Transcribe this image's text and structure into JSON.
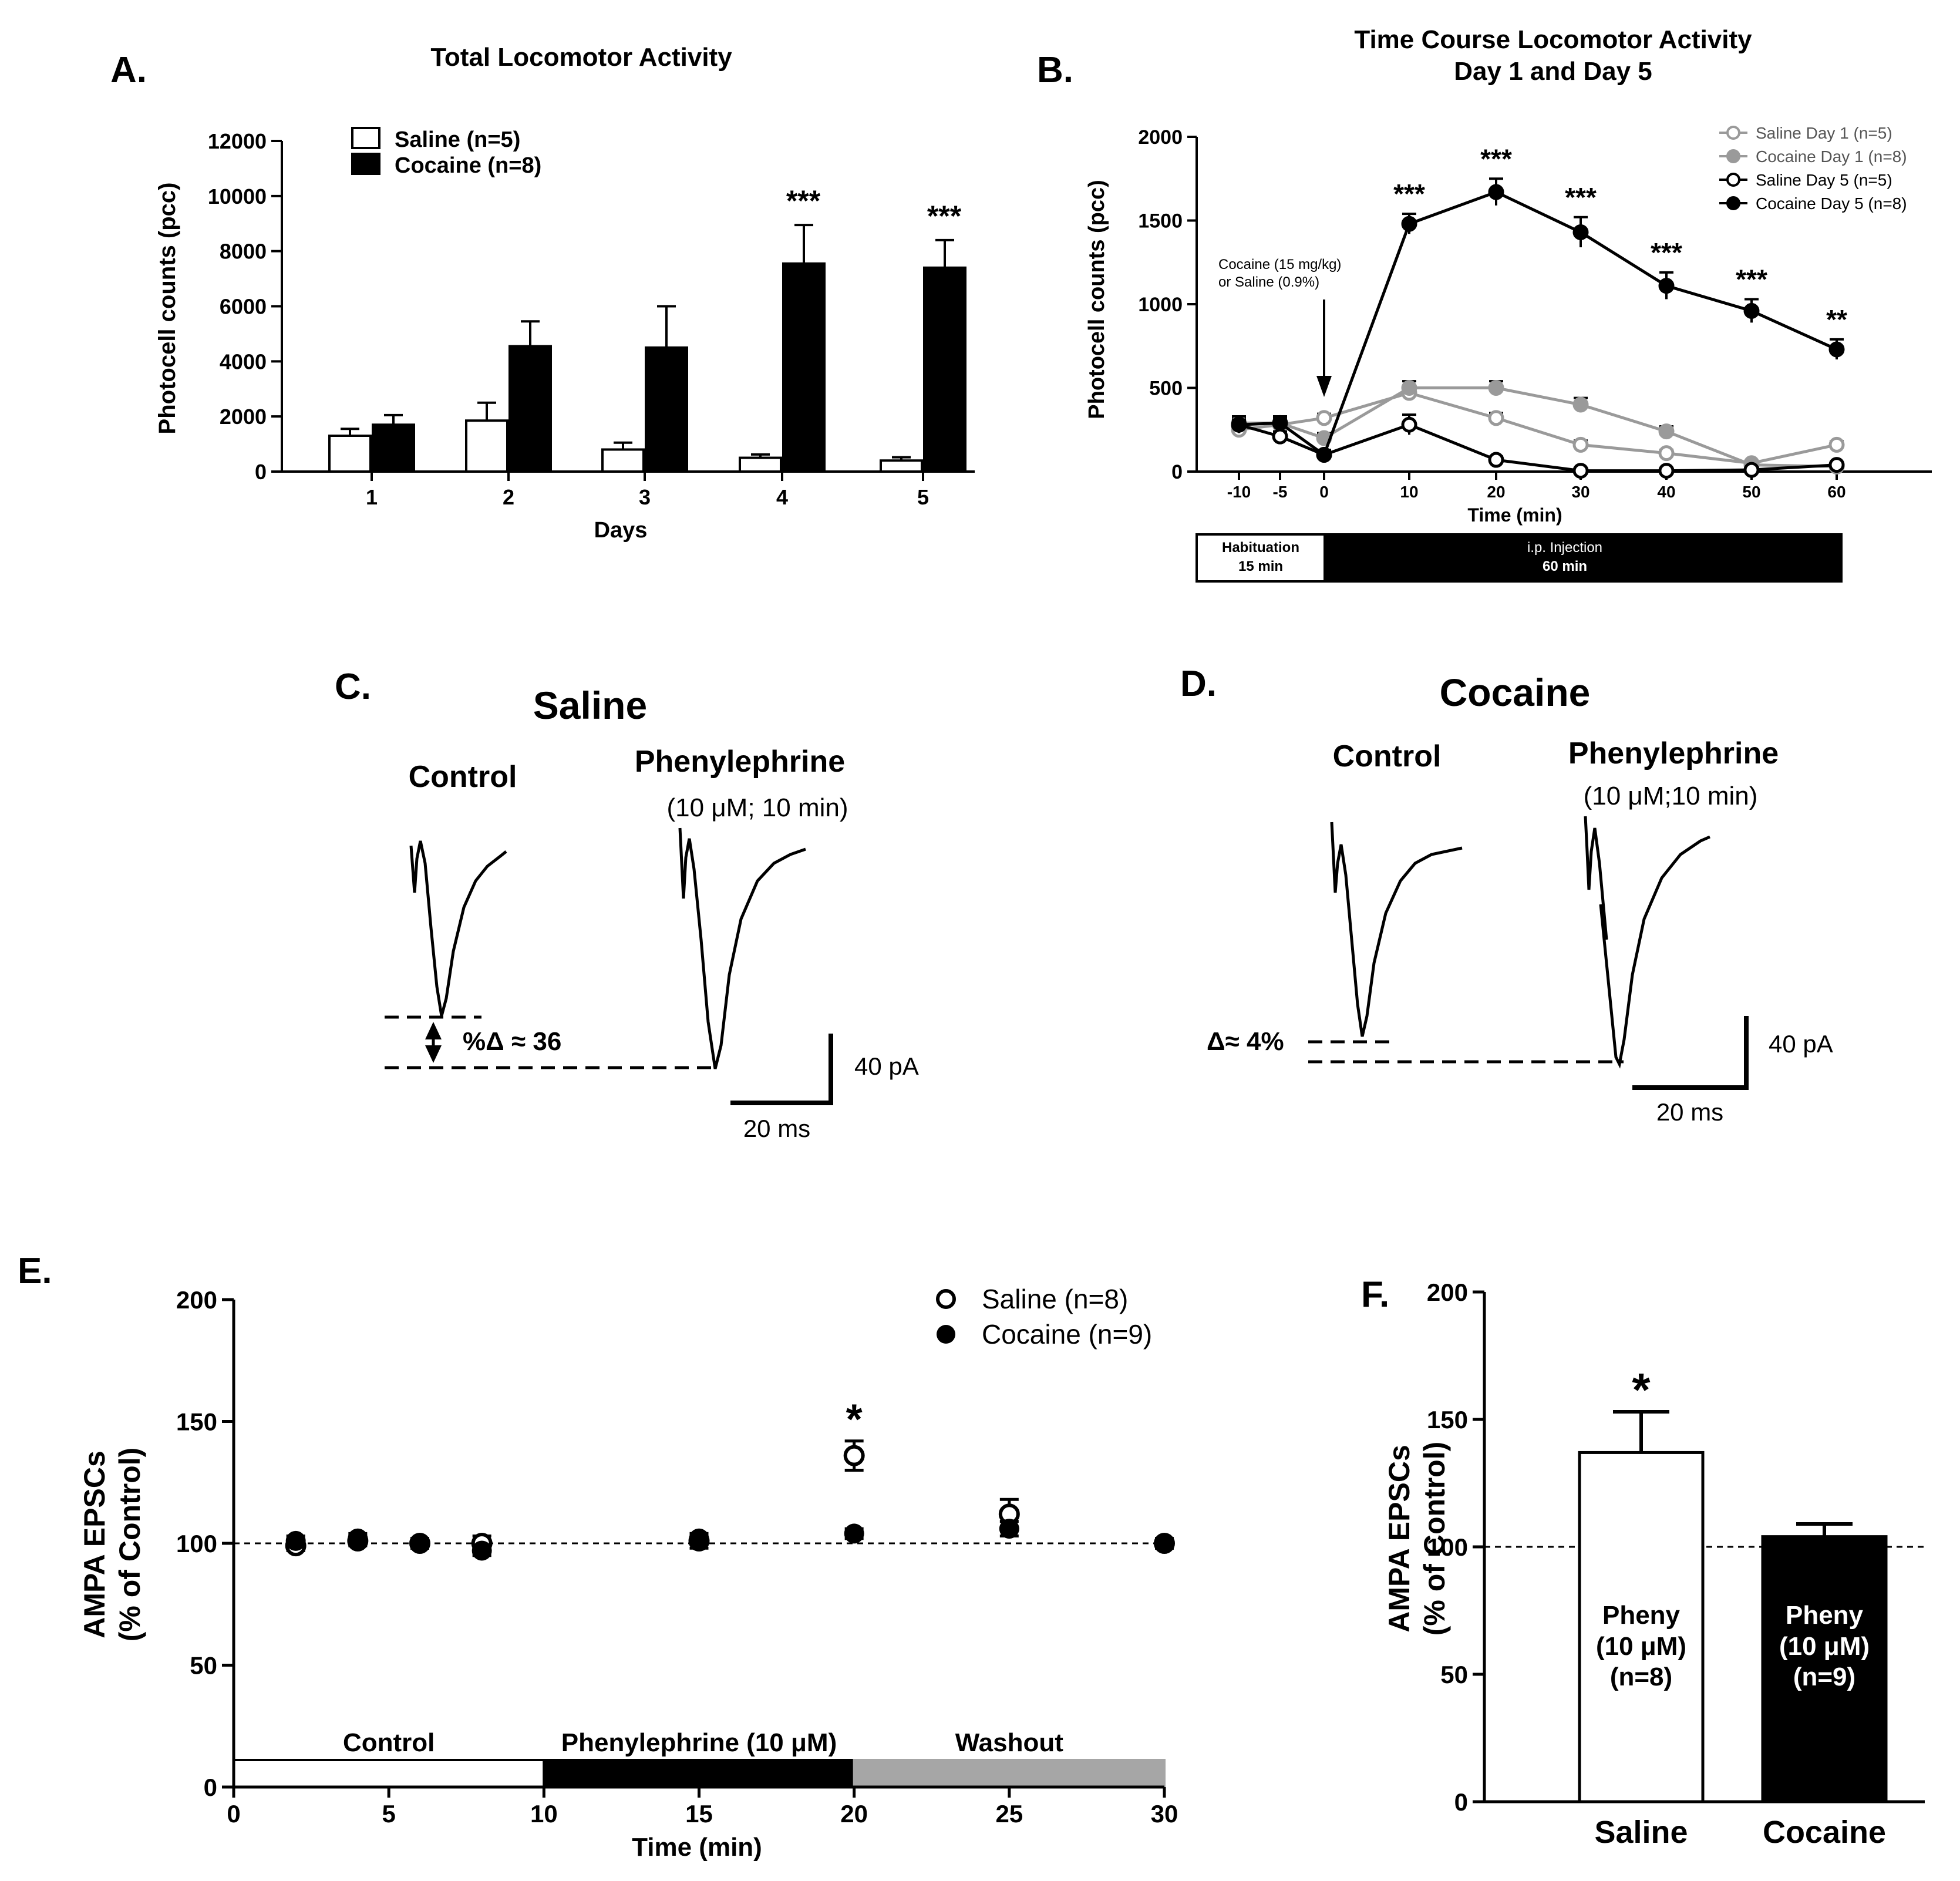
{
  "chart_data": [
    {
      "id": "A",
      "panel_label": "A.",
      "type": "bar",
      "title": "Total Locomotor Activity",
      "xlabel": "Days",
      "ylabel": "Photocell counts (pcc)",
      "ylim": [
        0,
        12000
      ],
      "yticks": [
        "0",
        "2000",
        "4000",
        "6000",
        "8000",
        "10000",
        "12000"
      ],
      "categories": [
        "1",
        "2",
        "3",
        "4",
        "5"
      ],
      "series": [
        {
          "name": "Saline (n=5)",
          "color": "#ffffff",
          "values": [
            1300,
            1850,
            800,
            500,
            400
          ],
          "errors": [
            250,
            650,
            250,
            120,
            120
          ]
        },
        {
          "name": "Cocaine (n=8)",
          "color": "#000000",
          "values": [
            1700,
            4550,
            4500,
            7550,
            7400
          ],
          "errors": [
            350,
            900,
            1500,
            1400,
            1000
          ]
        }
      ],
      "significance": [
        {
          "category": "4",
          "label": "***"
        },
        {
          "category": "5",
          "label": "***"
        }
      ]
    },
    {
      "id": "B",
      "panel_label": "B.",
      "type": "line",
      "title": "Time Course Locomotor Activity",
      "subtitle": "Day 1 and Day 5",
      "xlabel": "Time (min)",
      "ylabel": "Photocell counts (pcc)",
      "ylim": [
        0,
        2000
      ],
      "yticks": [
        "0",
        "500",
        "1000",
        "1500",
        "2000"
      ],
      "x": [
        -10,
        -5,
        0,
        10,
        20,
        30,
        40,
        50,
        60
      ],
      "xticks": [
        "-10",
        "-5",
        "0",
        "10",
        "20",
        "30",
        "40",
        "50",
        "60"
      ],
      "series": [
        {
          "name": "Saline Day 1 (n=5)",
          "color": "#9a9a9a",
          "marker": "open-circle",
          "values": [
            250,
            280,
            320,
            470,
            320,
            160,
            110,
            50,
            160
          ],
          "errors": [
            30,
            30,
            25,
            40,
            30,
            25,
            20,
            15,
            20
          ]
        },
        {
          "name": "Cocaine Day 1 (n=8)",
          "color": "#9a9a9a",
          "marker": "filled-circle",
          "values": [
            290,
            290,
            200,
            500,
            500,
            400,
            240,
            40,
            30
          ],
          "errors": [
            30,
            30,
            30,
            40,
            40,
            40,
            30,
            15,
            10
          ]
        },
        {
          "name": "Saline Day 5 (n=5)",
          "color": "#000000",
          "marker": "open-circle",
          "values": [
            280,
            210,
            100,
            280,
            70,
            5,
            5,
            10,
            40
          ],
          "errors": [
            30,
            30,
            20,
            60,
            20,
            5,
            5,
            5,
            10
          ]
        },
        {
          "name": "Cocaine Day 5 (n=8)",
          "color": "#000000",
          "marker": "filled-circle",
          "values": [
            280,
            290,
            100,
            1480,
            1670,
            1430,
            1110,
            960,
            730
          ],
          "errors": [
            50,
            40,
            30,
            60,
            80,
            90,
            80,
            70,
            60
          ]
        }
      ],
      "significance": [
        {
          "x": 10,
          "label": "***"
        },
        {
          "x": 20,
          "label": "***"
        },
        {
          "x": 30,
          "label": "***"
        },
        {
          "x": 40,
          "label": "***"
        },
        {
          "x": 50,
          "label": "***"
        },
        {
          "x": 60,
          "label": "**"
        }
      ],
      "annotation": {
        "line1": "Cocaine (15 mg/kg)",
        "line2": "or Saline (0.9%)",
        "at_x": 0
      },
      "timeline": {
        "habituation": {
          "line1": "Habituation",
          "line2": "15 min"
        },
        "injection": {
          "line1": "i.p. Injection",
          "line2": "60 min"
        }
      }
    },
    {
      "id": "E",
      "panel_label": "E.",
      "type": "scatter",
      "xlabel": "Time (min)",
      "ylabel_line1": "AMPA EPSCs",
      "ylabel_line2": "(% of Control)",
      "xlim": [
        0,
        30
      ],
      "ylim": [
        0,
        200
      ],
      "xticks": [
        "0",
        "5",
        "10",
        "15",
        "20",
        "25",
        "30"
      ],
      "yticks": [
        "0",
        "50",
        "100",
        "150",
        "200"
      ],
      "baseline": 100,
      "series": [
        {
          "name": "Saline (n=8)",
          "marker": "open-circle",
          "x": [
            2,
            4,
            6,
            8,
            15,
            20,
            25,
            30
          ],
          "values": [
            99,
            101,
            100,
            100,
            101,
            136,
            112,
            100
          ],
          "errors": [
            2,
            2,
            2,
            3,
            3,
            6,
            6,
            2
          ]
        },
        {
          "name": "Cocaine (n=9)",
          "marker": "filled-circle",
          "x": [
            2,
            4,
            6,
            8,
            15,
            20,
            25,
            30
          ],
          "values": [
            101,
            102,
            100,
            97,
            102,
            104,
            106,
            100
          ],
          "errors": [
            2,
            2,
            2,
            2,
            2,
            2,
            3,
            2
          ]
        }
      ],
      "significance": [
        {
          "x": 20,
          "label": "*"
        }
      ],
      "phases": [
        {
          "label": "Control",
          "start": 0,
          "end": 10,
          "color": "#ffffff"
        },
        {
          "label": "Phenylephrine (10 μM)",
          "start": 10,
          "end": 20,
          "color": "#000000"
        },
        {
          "label": "Washout",
          "start": 20,
          "end": 30,
          "color": "#a6a6a6"
        }
      ]
    },
    {
      "id": "F",
      "panel_label": "F.",
      "type": "bar",
      "ylabel_line1": "AMPA EPSCs",
      "ylabel_line2": "(% of Control)",
      "ylim": [
        0,
        200
      ],
      "yticks": [
        "0",
        "50",
        "100",
        "150",
        "200"
      ],
      "baseline": 100,
      "categories": [
        "Saline",
        "Cocaine"
      ],
      "values": [
        137,
        104
      ],
      "errors": [
        16,
        5
      ],
      "colors": [
        "#ffffff",
        "#000000"
      ],
      "bar_labels": [
        {
          "line1": "Pheny",
          "line2": "(10 μM)",
          "line3": "(n=8)"
        },
        {
          "line1": "Pheny",
          "line2": "(10 μM)",
          "line3": "(n=9)"
        }
      ],
      "significance": [
        {
          "category": "Saline",
          "label": "*"
        }
      ]
    }
  ],
  "traces": {
    "C": {
      "panel_label": "C.",
      "title": "Saline",
      "control_label": "Control",
      "drug_label": "Phenylephrine",
      "drug_sub": "(10 μM;  10 min)",
      "delta_label": "%Δ ≈ 36",
      "scale_y": "40 pA",
      "scale_x": "20 ms"
    },
    "D": {
      "panel_label": "D.",
      "title": "Cocaine",
      "control_label": "Control",
      "drug_label": "Phenylephrine",
      "drug_sub": "(10 μM;10 min)",
      "delta_label": "Δ≈ 4%",
      "scale_y": "40 pA",
      "scale_x": "20 ms"
    }
  }
}
